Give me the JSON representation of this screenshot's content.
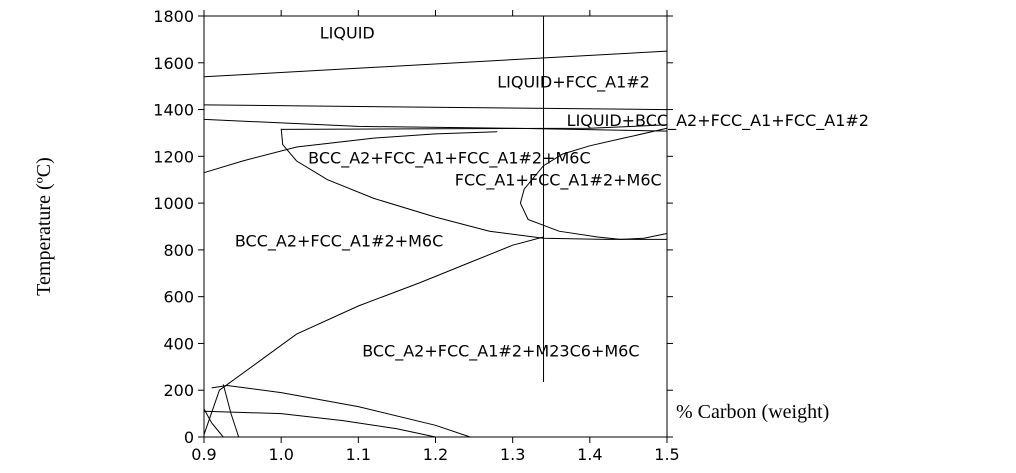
{
  "chart_data": {
    "type": "line",
    "title": "",
    "xlabel": "% Carbon (weight)",
    "ylabel": "Temperature (ºC)",
    "xlim": [
      0.9,
      1.5
    ],
    "ylim": [
      0,
      1800
    ],
    "x_ticks": [
      "0.9",
      "1.0",
      "1.1",
      "1.2",
      "1.3",
      "1.4",
      "1.5"
    ],
    "y_ticks": [
      "0",
      "200",
      "400",
      "600",
      "800",
      "1000",
      "1200",
      "1400",
      "1600",
      "1800"
    ],
    "grid": false,
    "vertical_lines": [
      1.34,
      1.5
    ],
    "regions": [
      {
        "label": "LIQUID",
        "x": 1.05,
        "y": 1730
      },
      {
        "label": "LIQUID+FCC_A1#2",
        "x": 1.28,
        "y": 1520
      },
      {
        "label": "LIQUID+BCC_A2+FCC_A1+FCC_A1#2",
        "x": 1.37,
        "y": 1355
      },
      {
        "label": "BCC_A2+FCC_A1+FCC_A1#2+M6C",
        "x": 1.035,
        "y": 1195
      },
      {
        "label": "FCC_A1+FCC_A1#2+M6C",
        "x": 1.225,
        "y": 1100
      },
      {
        "label": "BCC_A2+FCC_A1#2+M6C",
        "x": 0.94,
        "y": 840
      },
      {
        "label": "BCC_A2+FCC_A1#2+M23C6+M6C",
        "x": 1.105,
        "y": 370
      }
    ],
    "series": [
      {
        "values": [
          [
            0.9,
            1540
          ],
          [
            1.5,
            1650
          ]
        ]
      },
      {
        "values": [
          [
            0.9,
            1420
          ],
          [
            1.5,
            1400
          ]
        ]
      },
      {
        "values": [
          [
            0.9,
            1358
          ],
          [
            1.1,
            1328
          ],
          [
            1.3,
            1320
          ],
          [
            1.5,
            1308
          ]
        ]
      },
      {
        "values": [
          [
            1.0,
            1315
          ],
          [
            1.2,
            1318
          ],
          [
            1.4,
            1320
          ],
          [
            1.5,
            1335
          ]
        ]
      },
      {
        "values": [
          [
            0.9,
            1130
          ],
          [
            0.95,
            1180
          ],
          [
            1.02,
            1240
          ],
          [
            1.12,
            1278
          ],
          [
            1.2,
            1296
          ],
          [
            1.28,
            1305
          ]
        ]
      },
      {
        "values": [
          [
            1.0,
            1318
          ],
          [
            1.002,
            1250
          ],
          [
            1.02,
            1180
          ],
          [
            1.06,
            1100
          ],
          [
            1.12,
            1020
          ],
          [
            1.2,
            940
          ],
          [
            1.27,
            880
          ],
          [
            1.34,
            850
          ],
          [
            1.42,
            845
          ],
          [
            1.5,
            845
          ]
        ]
      },
      {
        "values": [
          [
            1.5,
            1320
          ],
          [
            1.44,
            1275
          ],
          [
            1.4,
            1245
          ],
          [
            1.365,
            1210
          ],
          [
            1.34,
            1160
          ],
          [
            1.315,
            1060
          ],
          [
            1.31,
            1000
          ],
          [
            1.32,
            930
          ],
          [
            1.36,
            880
          ],
          [
            1.41,
            855
          ],
          [
            1.44,
            845
          ],
          [
            1.47,
            850
          ],
          [
            1.5,
            870
          ]
        ]
      },
      {
        "values": [
          [
            0.9,
            10
          ],
          [
            0.92,
            200
          ],
          [
            0.97,
            320
          ],
          [
            1.02,
            440
          ],
          [
            1.1,
            560
          ],
          [
            1.18,
            660
          ],
          [
            1.24,
            740
          ],
          [
            1.3,
            820
          ],
          [
            1.34,
            855
          ]
        ]
      },
      {
        "values": [
          [
            0.9,
            110
          ],
          [
            1.0,
            100
          ],
          [
            1.08,
            70
          ],
          [
            1.15,
            35
          ],
          [
            1.2,
            0
          ]
        ]
      },
      {
        "values": [
          [
            0.91,
            210
          ],
          [
            0.93,
            220
          ],
          [
            1.0,
            190
          ],
          [
            1.1,
            130
          ],
          [
            1.2,
            50
          ],
          [
            1.245,
            0
          ]
        ]
      },
      {
        "values": [
          [
            0.9,
            120
          ],
          [
            0.91,
            60
          ],
          [
            0.925,
            0
          ]
        ]
      },
      {
        "values": [
          [
            0.925,
            225
          ],
          [
            0.935,
            100
          ],
          [
            0.945,
            0
          ]
        ]
      }
    ]
  }
}
